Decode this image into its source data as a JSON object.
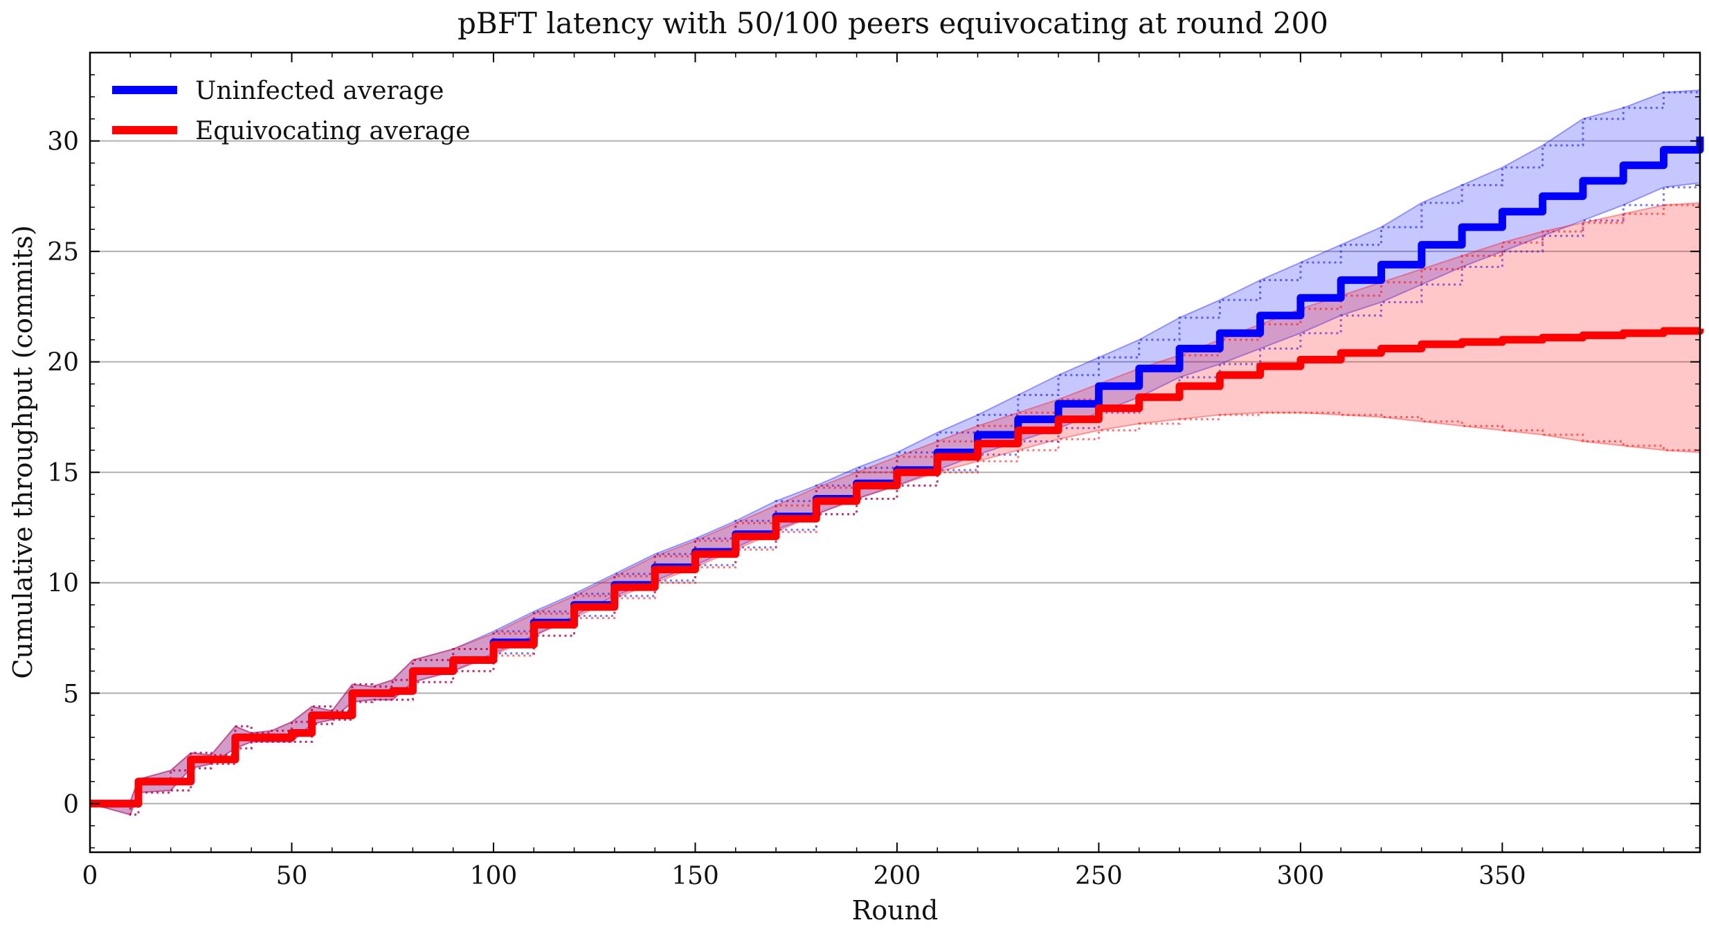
{
  "chart_data": {
    "type": "line",
    "title": "pBFT latency with 50/100 peers equivocating at round 200",
    "xlabel": "Round",
    "ylabel": "Cumulative throughput (commits)",
    "xlim": [
      0,
      399
    ],
    "ylim": [
      -2.2,
      34
    ],
    "x_ticks": [
      0,
      50,
      100,
      150,
      200,
      250,
      300,
      350
    ],
    "y_ticks": [
      0,
      5,
      10,
      15,
      20,
      25,
      30
    ],
    "grid": "horizontal",
    "legend_position": "top-left",
    "series": [
      {
        "name": "Uninfected average",
        "color": "#0000ff",
        "x": [
          0,
          10,
          12,
          20,
          25,
          30,
          36,
          40,
          45,
          50,
          55,
          60,
          65,
          70,
          75,
          80,
          90,
          100,
          110,
          120,
          130,
          140,
          150,
          160,
          170,
          180,
          190,
          200,
          210,
          220,
          230,
          240,
          250,
          260,
          270,
          280,
          290,
          300,
          310,
          320,
          330,
          340,
          350,
          360,
          370,
          380,
          390,
          399
        ],
        "values": [
          0,
          0,
          1,
          1,
          2,
          2,
          3,
          3,
          3,
          3.2,
          4,
          4,
          5,
          5,
          5.1,
          6,
          6.5,
          7.3,
          8.2,
          9.0,
          9.9,
          10.7,
          11.4,
          12.2,
          13.0,
          13.8,
          14.5,
          15.1,
          15.9,
          16.7,
          17.4,
          18.1,
          18.9,
          19.7,
          20.6,
          21.3,
          22.1,
          22.9,
          23.7,
          24.4,
          25.3,
          26.1,
          26.8,
          27.5,
          28.2,
          28.9,
          29.6,
          30.2
        ],
        "band_upper": [
          0,
          0.1,
          1.1,
          1.5,
          2.3,
          2.2,
          3.5,
          3.2,
          3.3,
          3.7,
          4.4,
          4.2,
          5.4,
          5.3,
          5.6,
          6.5,
          7.0,
          7.8,
          8.7,
          9.5,
          10.4,
          11.3,
          12.0,
          12.8,
          13.7,
          14.4,
          15.2,
          15.9,
          16.8,
          17.6,
          18.5,
          19.4,
          20.2,
          21.0,
          22.0,
          22.8,
          23.7,
          24.5,
          25.3,
          26.1,
          27.2,
          28.0,
          28.8,
          29.8,
          31.0,
          31.5,
          32.2,
          32.3
        ],
        "band_lower": [
          0,
          -0.5,
          0.5,
          0.6,
          1.6,
          1.8,
          2.5,
          2.8,
          2.8,
          2.8,
          3.6,
          3.8,
          4.6,
          4.7,
          4.7,
          5.5,
          6.0,
          6.8,
          7.6,
          8.5,
          9.4,
          10.1,
          10.8,
          11.6,
          12.4,
          13.1,
          13.8,
          14.4,
          15.1,
          15.8,
          16.4,
          17.0,
          17.7,
          18.4,
          19.3,
          19.9,
          20.6,
          21.3,
          22.1,
          22.7,
          23.5,
          24.3,
          25.0,
          25.7,
          26.4,
          27.1,
          27.9,
          28.1
        ]
      },
      {
        "name": "Equivocating average",
        "color": "#ff0000",
        "x": [
          0,
          10,
          12,
          20,
          25,
          30,
          36,
          40,
          45,
          50,
          55,
          60,
          65,
          70,
          75,
          80,
          90,
          100,
          110,
          120,
          130,
          140,
          150,
          160,
          170,
          180,
          190,
          200,
          210,
          220,
          230,
          240,
          250,
          260,
          270,
          280,
          290,
          300,
          310,
          320,
          330,
          340,
          350,
          360,
          370,
          380,
          390,
          399
        ],
        "values": [
          0,
          0,
          1,
          1,
          2,
          2,
          3,
          3,
          3,
          3.2,
          4,
          4,
          5,
          5,
          5.1,
          6,
          6.5,
          7.2,
          8.1,
          8.9,
          9.8,
          10.6,
          11.3,
          12.1,
          12.9,
          13.7,
          14.4,
          15.0,
          15.7,
          16.3,
          16.9,
          17.4,
          17.9,
          18.4,
          18.9,
          19.4,
          19.8,
          20.1,
          20.4,
          20.6,
          20.8,
          20.9,
          21.0,
          21.1,
          21.2,
          21.3,
          21.4,
          21.5
        ],
        "band_upper": [
          0,
          0.1,
          1.1,
          1.5,
          2.3,
          2.2,
          3.5,
          3.2,
          3.3,
          3.7,
          4.4,
          4.2,
          5.4,
          5.3,
          5.6,
          6.5,
          7.0,
          7.7,
          8.6,
          9.4,
          10.3,
          11.2,
          11.9,
          12.7,
          13.5,
          14.3,
          15.0,
          15.7,
          16.4,
          17.1,
          17.7,
          18.3,
          19.0,
          19.7,
          20.3,
          21.0,
          21.7,
          22.4,
          23.0,
          23.6,
          24.2,
          24.8,
          25.4,
          25.9,
          26.3,
          26.7,
          27.1,
          27.2
        ],
        "band_lower": [
          0,
          -0.5,
          0.5,
          0.6,
          1.6,
          1.8,
          2.5,
          2.8,
          2.8,
          2.8,
          3.6,
          3.8,
          4.6,
          4.7,
          4.7,
          5.5,
          6.0,
          6.7,
          7.6,
          8.4,
          9.3,
          10.0,
          10.7,
          11.5,
          12.3,
          13.1,
          13.8,
          14.4,
          15.0,
          15.5,
          16.0,
          16.5,
          16.9,
          17.2,
          17.4,
          17.6,
          17.7,
          17.7,
          17.6,
          17.5,
          17.3,
          17.1,
          16.9,
          16.7,
          16.4,
          16.2,
          16.0,
          15.9
        ]
      }
    ]
  }
}
